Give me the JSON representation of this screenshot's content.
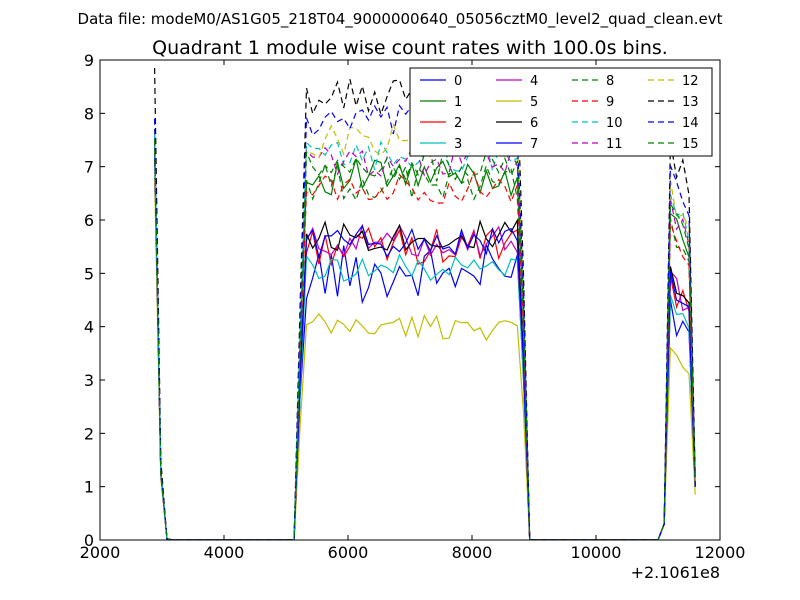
{
  "figure": {
    "suptitle": "Data file: modeM0/AS1G05_218T04_9000000640_05056cztM0_level2_quad_clean.evt",
    "title": "Quadrant 1 module wise count rates with 100.0s bins.",
    "x_offset_label": "+2.1061e8"
  },
  "chart_data": {
    "type": "line",
    "title": "Quadrant 1 module wise count rates with 100.0s bins.",
    "xlabel": "",
    "ylabel": "",
    "xlim": [
      2000,
      12000
    ],
    "ylim": [
      0,
      9
    ],
    "x_offset": 210610000,
    "xticks": [
      2000,
      4000,
      6000,
      8000,
      10000,
      12000
    ],
    "xtick_labels": [
      "2000",
      "4000",
      "6000",
      "8000",
      "10000",
      "12000"
    ],
    "yticks": [
      0,
      1,
      2,
      3,
      4,
      5,
      6,
      7,
      8,
      9
    ],
    "ytick_labels": [
      "0",
      "1",
      "2",
      "3",
      "4",
      "5",
      "6",
      "7",
      "8",
      "9"
    ],
    "grid": false,
    "legend_position": "top-right",
    "legend_columns": 4,
    "segments": [
      {
        "x": [
          2880,
          2980,
          3080,
          3180
        ]
      },
      {
        "x": [
          5130,
          5230,
          5330,
          5430,
          5530,
          5630,
          5730,
          5830,
          5930,
          6030,
          6130,
          6230,
          6330,
          6430,
          6530,
          6630,
          6730,
          6830,
          6930,
          7030,
          7130,
          7230,
          7330,
          7430,
          7530,
          7630,
          7730,
          7830,
          7930,
          8030,
          8130,
          8230,
          8330,
          8430,
          8530,
          8630,
          8730,
          8830,
          8930
        ]
      },
      {
        "x": [
          11000,
          11100,
          11200,
          11300,
          11400,
          11500,
          11600
        ]
      }
    ],
    "zero_gaps": [
      [
        3180,
        5130
      ],
      [
        8930,
        11000
      ]
    ],
    "series": [
      {
        "name": "0",
        "color": "#0000ff",
        "dash": "solid",
        "level": 5.0,
        "start": 7.6,
        "var": 0.55,
        "tail": 1.0
      },
      {
        "name": "1",
        "color": "#008000",
        "dash": "solid",
        "level": 6.8,
        "start": 7.5,
        "var": 0.35,
        "tail": 1.1
      },
      {
        "name": "2",
        "color": "#ff0000",
        "dash": "solid",
        "level": 5.5,
        "start": 7.4,
        "var": 0.35,
        "tail": 1.0
      },
      {
        "name": "3",
        "color": "#00bfbf",
        "dash": "solid",
        "level": 5.1,
        "start": 7.2,
        "var": 0.25,
        "tail": 1.0
      },
      {
        "name": "4",
        "color": "#bf00bf",
        "dash": "solid",
        "level": 5.6,
        "start": 7.3,
        "var": 0.3,
        "tail": 1.0
      },
      {
        "name": "5",
        "color": "#bfbf00",
        "dash": "solid",
        "level": 4.0,
        "start": 6.8,
        "var": 0.25,
        "tail": 0.85
      },
      {
        "name": "6",
        "color": "#000000",
        "dash": "solid",
        "level": 5.7,
        "start": 7.4,
        "var": 0.3,
        "tail": 1.0
      },
      {
        "name": "7",
        "color": "#0000ff",
        "dash": "solid",
        "level": 5.6,
        "start": 7.3,
        "var": 0.3,
        "tail": 1.0
      },
      {
        "name": "8",
        "color": "#008000",
        "dash": "dashed",
        "level": 6.7,
        "start": 7.6,
        "var": 0.35,
        "tail": 1.1
      },
      {
        "name": "9",
        "color": "#ff0000",
        "dash": "dashed",
        "level": 6.6,
        "start": 7.5,
        "var": 0.3,
        "tail": 1.1
      },
      {
        "name": "10",
        "color": "#00bfbf",
        "dash": "dashed",
        "level": 7.2,
        "start": 7.6,
        "var": 0.3,
        "tail": 1.1
      },
      {
        "name": "11",
        "color": "#bf00bf",
        "dash": "dashed",
        "level": 7.1,
        "start": 7.5,
        "var": 0.3,
        "tail": 1.1
      },
      {
        "name": "12",
        "color": "#bfbf00",
        "dash": "dashed",
        "level": 7.5,
        "start": 7.7,
        "var": 0.35,
        "tail": 1.1
      },
      {
        "name": "13",
        "color": "#000000",
        "dash": "dashed",
        "level": 8.3,
        "start": 8.85,
        "var": 0.35,
        "tail": 1.2
      },
      {
        "name": "14",
        "color": "#0000ff",
        "dash": "dashed",
        "level": 7.8,
        "start": 7.9,
        "var": 0.35,
        "tail": 1.1
      },
      {
        "name": "15",
        "color": "#008000",
        "dash": "dashed",
        "level": 7.0,
        "start": 7.5,
        "var": 0.3,
        "tail": 1.1
      }
    ]
  }
}
